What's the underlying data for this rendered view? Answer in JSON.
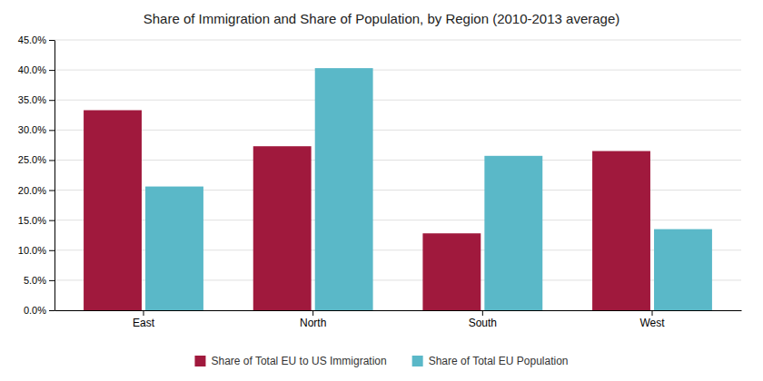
{
  "chart_data": {
    "type": "bar",
    "title": "Share of Immigration and Share of Population, by Region (2010-2013 average)",
    "categories": [
      "East",
      "North",
      "South",
      "West"
    ],
    "series": [
      {
        "name": "Share of Total EU to US Immigration",
        "color": "#A0193D",
        "values": [
          0.333,
          0.273,
          0.128,
          0.265
        ]
      },
      {
        "name": "Share of Total EU Population",
        "color": "#5AB8C8",
        "values": [
          0.206,
          0.403,
          0.257,
          0.135
        ]
      }
    ],
    "ylim": [
      0,
      0.45
    ],
    "yticks": [
      {
        "value": 0.0,
        "label": "0.0%"
      },
      {
        "value": 0.05,
        "label": "5.0%"
      },
      {
        "value": 0.1,
        "label": "10.0%"
      },
      {
        "value": 0.15,
        "label": "15.0%"
      },
      {
        "value": 0.2,
        "label": "20.0%"
      },
      {
        "value": 0.25,
        "label": "25.0%"
      },
      {
        "value": 0.3,
        "label": "30.0%"
      },
      {
        "value": 0.35,
        "label": "35.0%"
      },
      {
        "value": 0.4,
        "label": "40.0%"
      },
      {
        "value": 0.45,
        "label": "45.0%"
      }
    ],
    "grid": true,
    "legend": "bottom"
  }
}
